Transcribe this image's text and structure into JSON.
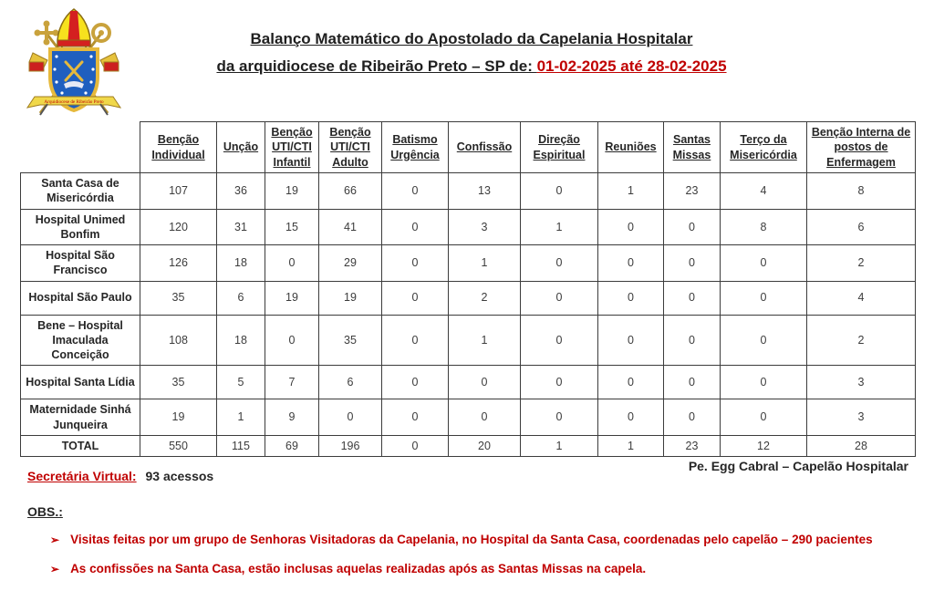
{
  "header": {
    "title_line1": "Balanço Matemático do Apostolado da Capelania Hospitalar",
    "title_line2_black": "da arquidiocese de Ribeirão Preto – SP de: ",
    "title_line2_red": "01-02-2025 até 28-02-2025"
  },
  "logo": {
    "name": "archdiocese-ribeirao-preto-coat-of-arms",
    "banner_text": "Arquidiocese de Ribeirão Preto"
  },
  "chart_data": {
    "type": "table",
    "title": "Balanço Matemático do Apostolado da Capelania Hospitalar",
    "period": "01-02-2025 até 28-02-2025",
    "columns": [
      "Benção Individual",
      "Unção",
      "Benção UTI/CTI Infantil",
      "Benção UTI/CTI Adulto",
      "Batismo Urgência",
      "Confissão",
      "Direção Espiritual",
      "Reuniões",
      "Santas Missas",
      "Terço da Misericórdia",
      "Benção Interna de postos de Enfermagem"
    ],
    "rows": [
      {
        "name": "Santa Casa de Misericórdia",
        "values": [
          107,
          36,
          19,
          66,
          0,
          13,
          0,
          1,
          23,
          4,
          8
        ]
      },
      {
        "name": "Hospital Unimed Bonfim",
        "values": [
          120,
          31,
          15,
          41,
          0,
          3,
          1,
          0,
          0,
          8,
          6
        ]
      },
      {
        "name": "Hospital São Francisco",
        "values": [
          126,
          18,
          0,
          29,
          0,
          1,
          0,
          0,
          0,
          0,
          2
        ]
      },
      {
        "name": "Hospital São Paulo",
        "values": [
          35,
          6,
          19,
          19,
          0,
          2,
          0,
          0,
          0,
          0,
          4
        ]
      },
      {
        "name": "Bene – Hospital Imaculada Conceição",
        "values": [
          108,
          18,
          0,
          35,
          0,
          1,
          0,
          0,
          0,
          0,
          2
        ]
      },
      {
        "name": "Hospital Santa Lídia",
        "values": [
          35,
          5,
          7,
          6,
          0,
          0,
          0,
          0,
          0,
          0,
          3
        ]
      },
      {
        "name": "Maternidade Sinhá Junqueira",
        "values": [
          19,
          1,
          9,
          0,
          0,
          0,
          0,
          0,
          0,
          0,
          3
        ]
      }
    ],
    "total": {
      "label": "TOTAL",
      "values": [
        550,
        115,
        69,
        196,
        0,
        20,
        1,
        1,
        23,
        12,
        28
      ]
    }
  },
  "footer": {
    "secretaria_label": "Secretária Virtual:",
    "secretaria_value": "93 acessos",
    "signature": "Pe. Egg Cabral – Capelão Hospitalar",
    "obs_label": "OBS.:",
    "bullet_arrow": "➢",
    "bullets": [
      {
        "text": "Visitas feitas por um grupo de Senhoras Visitadoras da Capelania, no Hospital da Santa Casa, coordenadas pelo capelão – ",
        "bold": "290 pacientes"
      },
      {
        "text": "As confissões na Santa Casa, estão inclusas aquelas realizadas após as Santas Missas na capela.",
        "bold": ""
      }
    ]
  },
  "colors": {
    "accent_red": "#c00000",
    "text_black": "#262626",
    "border": "#3c3c3c",
    "logo_blue": "#1f5fbf",
    "logo_gold": "#e6b93c",
    "logo_red": "#cc1f1f"
  }
}
